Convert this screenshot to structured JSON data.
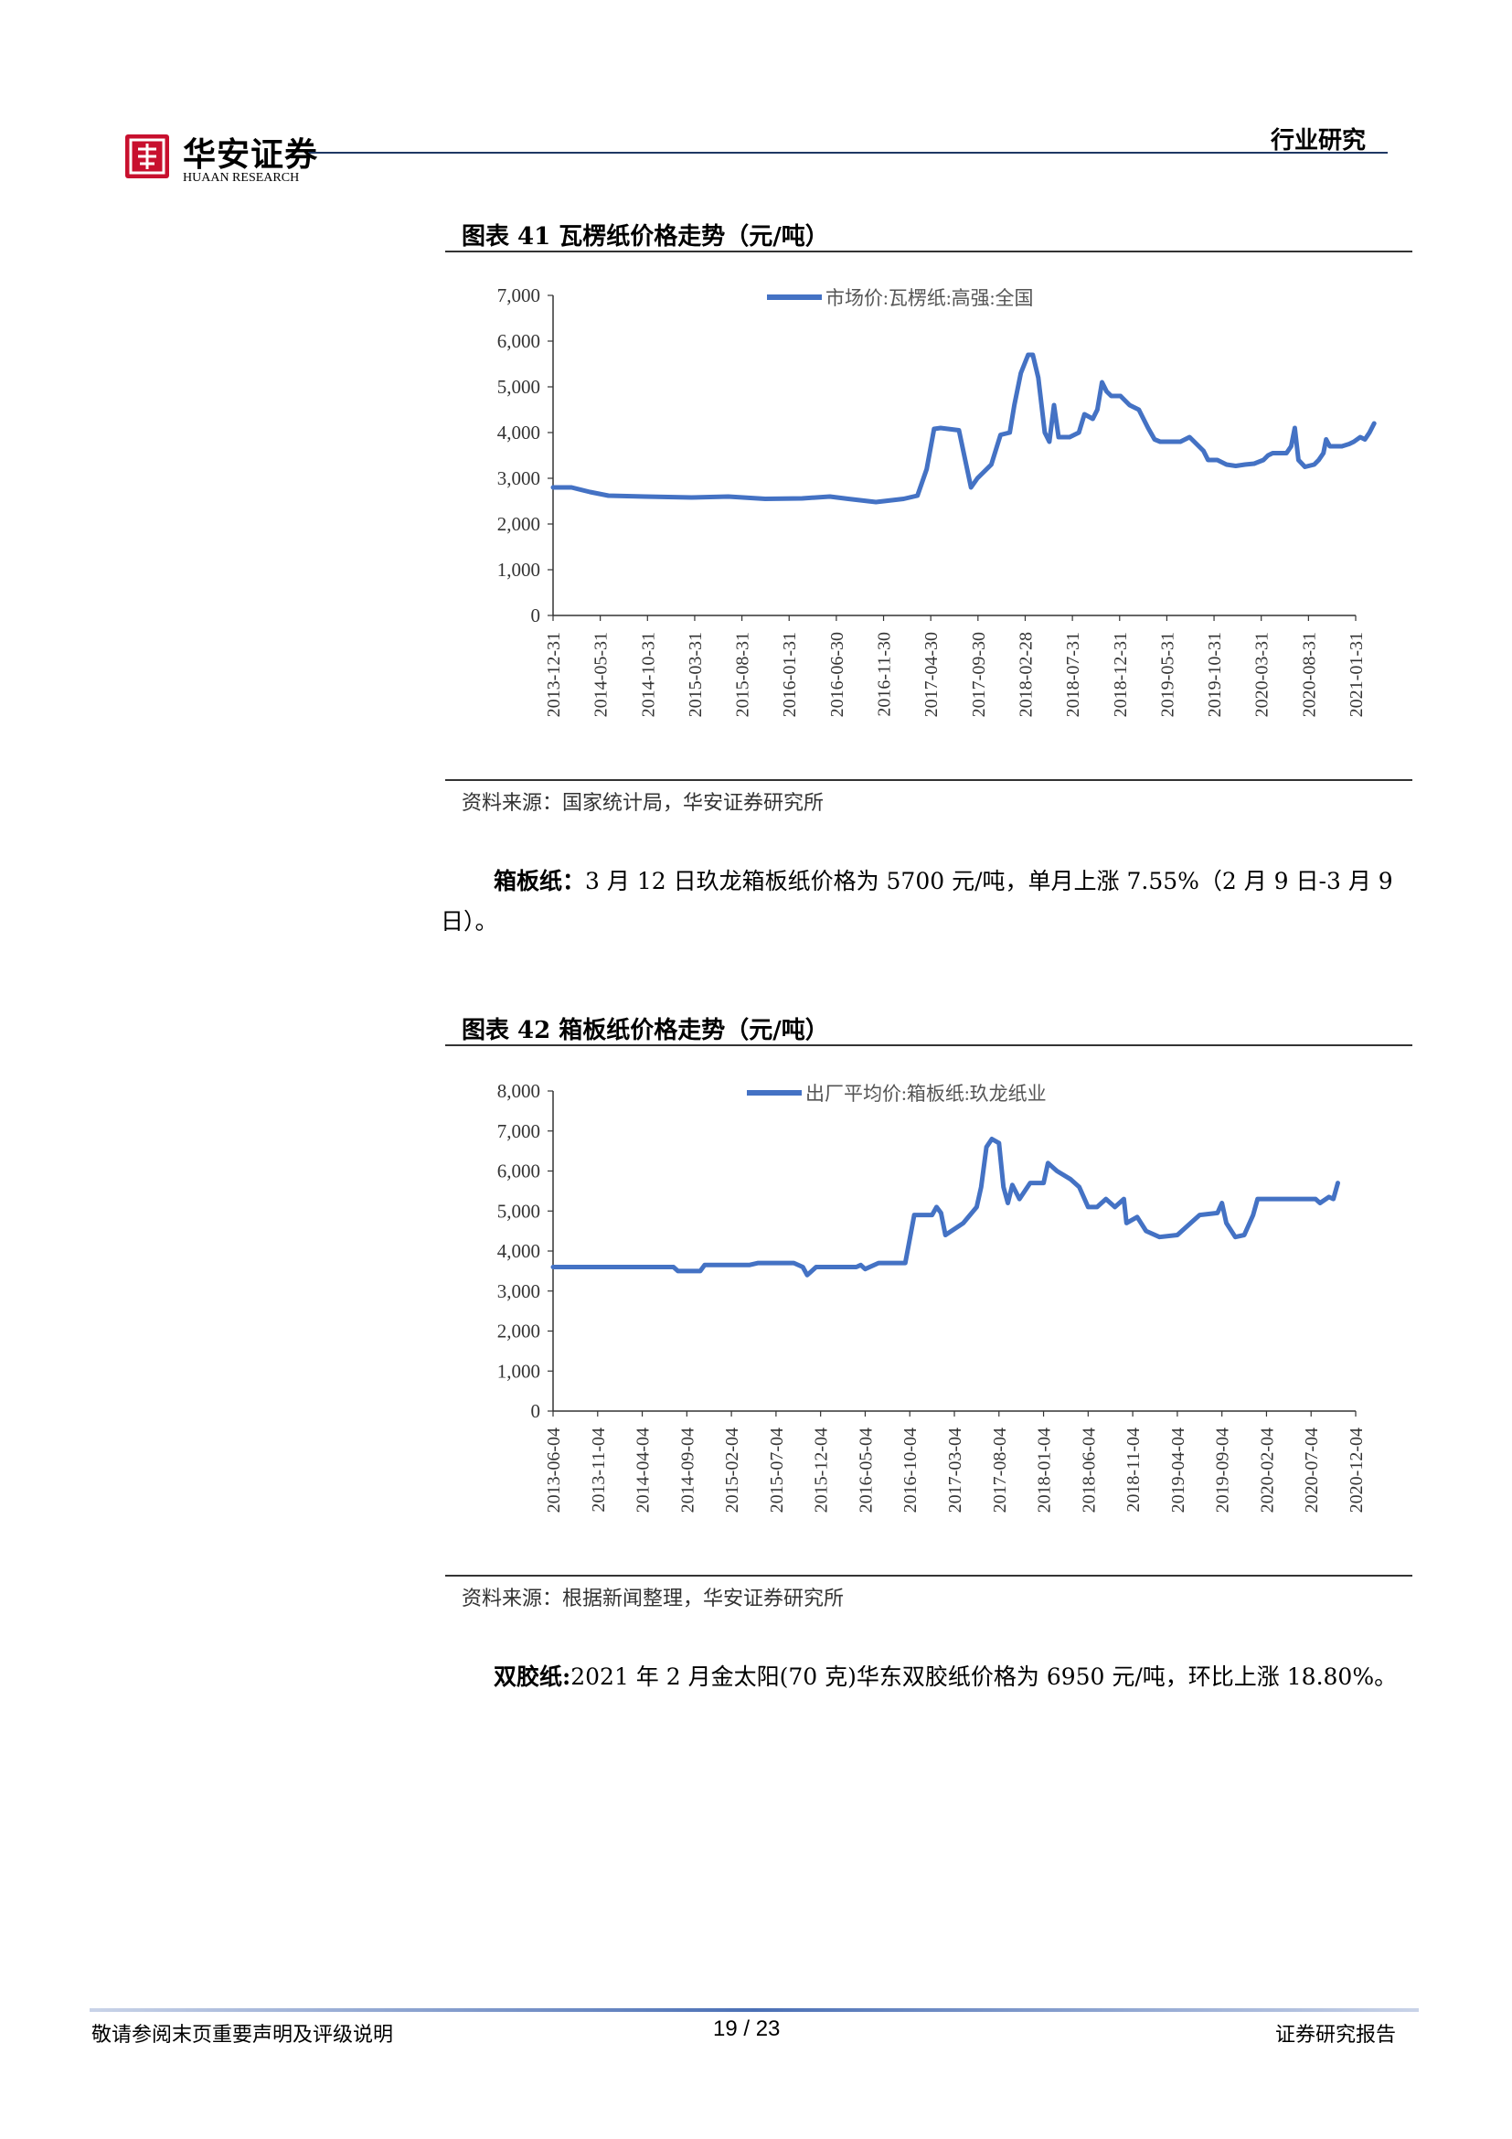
{
  "header": {
    "logo_cn": "华安证券",
    "logo_en": "HUAAN RESEARCH",
    "section": "行业研究"
  },
  "chart1": {
    "title": "图表 41 瓦楞纸价格走势（元/吨）",
    "source": "资料来源：国家统计局，华安证券研究所",
    "chart_data": {
      "type": "line",
      "legend": "市场价:瓦楞纸:高强:全国",
      "legend_position": "top-center",
      "ylim": [
        0,
        7000
      ],
      "yticks": [
        "0",
        "1,000",
        "2,000",
        "3,000",
        "4,000",
        "5,000",
        "6,000",
        "7,000"
      ],
      "xticks": [
        "2013-12-31",
        "2014-05-31",
        "2014-10-31",
        "2015-03-31",
        "2015-08-31",
        "2016-01-31",
        "2016-06-30",
        "2016-11-30",
        "2017-04-30",
        "2017-09-30",
        "2018-02-28",
        "2018-07-31",
        "2018-12-31",
        "2019-05-31",
        "2019-10-31",
        "2020-03-31",
        "2020-08-31",
        "2021-01-31"
      ],
      "xrange": [
        0,
        87
      ],
      "series": [
        {
          "name": "市场价:瓦楞纸:高强:全国",
          "color": "#4472c4",
          "points": [
            [
              0,
              2800
            ],
            [
              2,
              2800
            ],
            [
              4,
              2700
            ],
            [
              6,
              2620
            ],
            [
              10,
              2600
            ],
            [
              15,
              2580
            ],
            [
              19,
              2600
            ],
            [
              23,
              2550
            ],
            [
              27,
              2560
            ],
            [
              30,
              2600
            ],
            [
              32,
              2550
            ],
            [
              35,
              2480
            ],
            [
              38,
              2550
            ],
            [
              39.5,
              2620
            ],
            [
              40.5,
              3200
            ],
            [
              41.3,
              4080
            ],
            [
              42,
              4100
            ],
            [
              44,
              4050
            ],
            [
              45.3,
              2800
            ],
            [
              46,
              3000
            ],
            [
              47.5,
              3300
            ],
            [
              48.5,
              3950
            ],
            [
              49.5,
              4000
            ],
            [
              50,
              4600
            ],
            [
              50.7,
              5300
            ],
            [
              51.5,
              5700
            ],
            [
              52,
              5700
            ],
            [
              52.6,
              5200
            ],
            [
              53.3,
              4000
            ],
            [
              53.8,
              3800
            ],
            [
              54.3,
              4600
            ],
            [
              54.8,
              3900
            ],
            [
              56,
              3900
            ],
            [
              57,
              4000
            ],
            [
              57.6,
              4400
            ],
            [
              58.5,
              4300
            ],
            [
              59,
              4500
            ],
            [
              59.5,
              5100
            ],
            [
              60,
              4900
            ],
            [
              60.5,
              4800
            ],
            [
              61.5,
              4800
            ],
            [
              62.5,
              4600
            ],
            [
              63.5,
              4500
            ],
            [
              64.5,
              4100
            ],
            [
              65.2,
              3850
            ],
            [
              65.8,
              3800
            ],
            [
              67,
              3800
            ],
            [
              68,
              3800
            ],
            [
              69,
              3900
            ],
            [
              69.5,
              3800
            ],
            [
              70.5,
              3600
            ],
            [
              71,
              3400
            ],
            [
              72,
              3400
            ],
            [
              73,
              3300
            ],
            [
              74,
              3270
            ],
            [
              75,
              3300
            ],
            [
              76,
              3320
            ],
            [
              77,
              3400
            ],
            [
              77.5,
              3500
            ],
            [
              78,
              3550
            ],
            [
              79.5,
              3550
            ],
            [
              80,
              3700
            ],
            [
              80.4,
              4100
            ],
            [
              80.8,
              3400
            ],
            [
              81.5,
              3250
            ],
            [
              82.5,
              3300
            ],
            [
              83,
              3400
            ],
            [
              83.5,
              3550
            ],
            [
              83.8,
              3850
            ],
            [
              84.2,
              3700
            ],
            [
              85.5,
              3700
            ],
            [
              86.3,
              3750
            ],
            [
              86.8,
              3800
            ],
            [
              87.5,
              3900
            ],
            [
              88,
              3850
            ],
            [
              88.5,
              4000
            ],
            [
              89,
              4200
            ]
          ]
        }
      ]
    }
  },
  "para1": {
    "bold": "箱板纸：",
    "text": "3 月 12 日玖龙箱板纸价格为 5700 元/吨，单月上涨 7.55%（2 月 9 日-3 月 9 日）。"
  },
  "chart2": {
    "title": "图表 42 箱板纸价格走势（元/吨）",
    "source": "资料来源：根据新闻整理，华安证券研究所",
    "chart_data": {
      "type": "line",
      "legend": "出厂平均价:箱板纸:玖龙纸业",
      "legend_position": "top-center",
      "ylim": [
        0,
        8000
      ],
      "yticks": [
        "0",
        "1,000",
        "2,000",
        "3,000",
        "4,000",
        "5,000",
        "6,000",
        "7,000",
        "8,000"
      ],
      "xticks": [
        "2013-06-04",
        "2013-11-04",
        "2014-04-04",
        "2014-09-04",
        "2015-02-04",
        "2015-07-04",
        "2015-12-04",
        "2016-05-04",
        "2016-10-04",
        "2017-03-04",
        "2017-08-04",
        "2018-01-04",
        "2018-06-04",
        "2018-11-04",
        "2019-04-04",
        "2019-09-04",
        "2020-02-04",
        "2020-07-04",
        "2020-12-04"
      ],
      "xrange": [
        0,
        90
      ],
      "series": [
        {
          "name": "出厂平均价:箱板纸:玖龙纸业",
          "color": "#4472c4",
          "points": [
            [
              0,
              3600
            ],
            [
              13.5,
              3600
            ],
            [
              14,
              3500
            ],
            [
              16.5,
              3500
            ],
            [
              17,
              3650
            ],
            [
              22,
              3650
            ],
            [
              23,
              3700
            ],
            [
              27,
              3700
            ],
            [
              28,
              3600
            ],
            [
              28.5,
              3400
            ],
            [
              29.5,
              3600
            ],
            [
              34,
              3600
            ],
            [
              34.5,
              3650
            ],
            [
              35,
              3550
            ],
            [
              36.5,
              3700
            ],
            [
              39.5,
              3700
            ],
            [
              40,
              4300
            ],
            [
              40.5,
              4900
            ],
            [
              42.5,
              4900
            ],
            [
              43,
              5100
            ],
            [
              43.5,
              4950
            ],
            [
              44,
              4400
            ],
            [
              46,
              4700
            ],
            [
              47.5,
              5100
            ],
            [
              48,
              5600
            ],
            [
              48.6,
              6600
            ],
            [
              49.2,
              6800
            ],
            [
              50,
              6700
            ],
            [
              50.5,
              5600
            ],
            [
              51,
              5200
            ],
            [
              51.5,
              5650
            ],
            [
              52.3,
              5300
            ],
            [
              53.5,
              5700
            ],
            [
              55,
              5700
            ],
            [
              55.5,
              6200
            ],
            [
              56.5,
              6000
            ],
            [
              58,
              5800
            ],
            [
              59,
              5600
            ],
            [
              60,
              5100
            ],
            [
              61,
              5100
            ],
            [
              62,
              5300
            ],
            [
              63,
              5100
            ],
            [
              64,
              5300
            ],
            [
              64.3,
              4700
            ],
            [
              65.5,
              4850
            ],
            [
              66.5,
              4500
            ],
            [
              68,
              4350
            ],
            [
              70,
              4400
            ],
            [
              71.5,
              4700
            ],
            [
              72.5,
              4900
            ],
            [
              74.5,
              4950
            ],
            [
              75,
              5200
            ],
            [
              75.5,
              4700
            ],
            [
              76.5,
              4350
            ],
            [
              77.5,
              4400
            ],
            [
              78.5,
              4900
            ],
            [
              79,
              5300
            ],
            [
              85.5,
              5300
            ],
            [
              86,
              5200
            ],
            [
              87,
              5350
            ],
            [
              87.5,
              5300
            ],
            [
              88,
              5700
            ]
          ]
        }
      ]
    }
  },
  "para2": {
    "bold": "双胶纸:",
    "text": "2021 年 2 月金太阳(70 克)华东双胶纸价格为 6950 元/吨，环比上涨 18.80%。"
  },
  "footer": {
    "left": "敬请参阅末页重要声明及评级说明",
    "page": "19 / 23",
    "right": "证券研究报告"
  }
}
